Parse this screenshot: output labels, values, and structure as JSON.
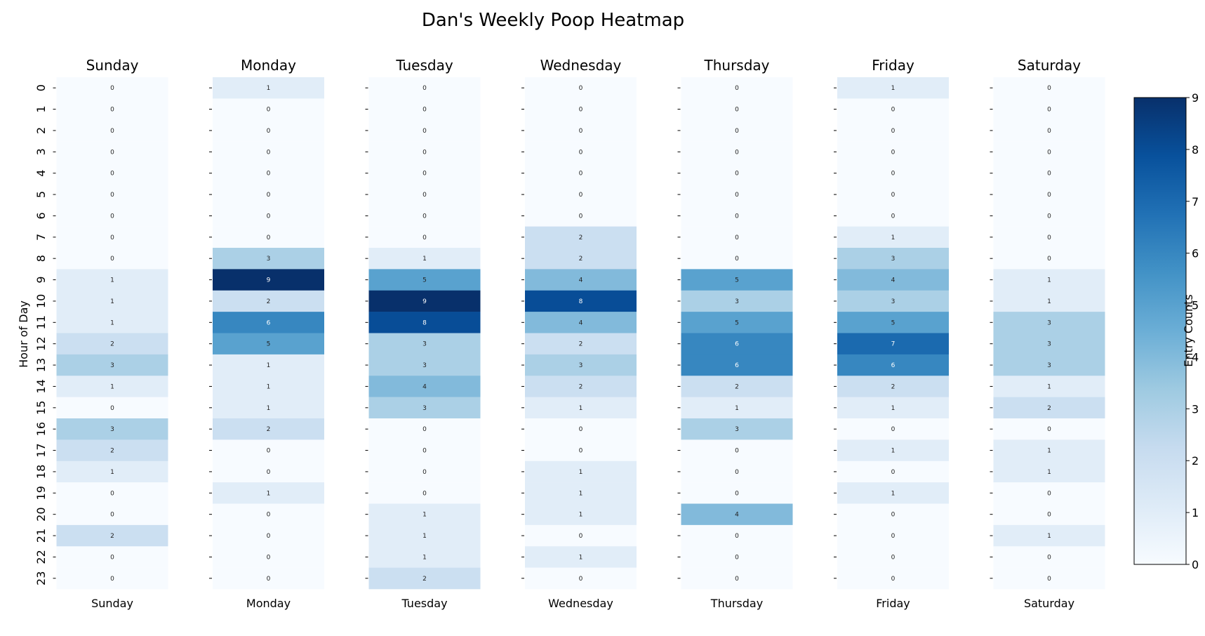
{
  "chart_data": {
    "type": "heatmap",
    "title": "Dan's Weekly Poop Heatmap",
    "ylabel": "Hour of Day",
    "colorbar_label": "Entry Counts",
    "colormap": "Blues",
    "vmin": 0,
    "vmax": 9,
    "colorbar_ticks": [
      0,
      1,
      2,
      3,
      4,
      5,
      6,
      7,
      8,
      9
    ],
    "hours": [
      0,
      1,
      2,
      3,
      4,
      5,
      6,
      7,
      8,
      9,
      10,
      11,
      12,
      13,
      14,
      15,
      16,
      17,
      18,
      19,
      20,
      21,
      22,
      23
    ],
    "series": [
      {
        "name": "Sunday",
        "values": [
          0,
          0,
          0,
          0,
          0,
          0,
          0,
          0,
          0,
          1,
          1,
          1,
          2,
          3,
          1,
          0,
          3,
          2,
          1,
          0,
          0,
          2,
          0,
          0
        ]
      },
      {
        "name": "Monday",
        "values": [
          1,
          0,
          0,
          0,
          0,
          0,
          0,
          0,
          3,
          9,
          2,
          6,
          5,
          1,
          1,
          1,
          2,
          0,
          0,
          1,
          0,
          0,
          0,
          0
        ]
      },
      {
        "name": "Tuesday",
        "values": [
          0,
          0,
          0,
          0,
          0,
          0,
          0,
          0,
          1,
          5,
          9,
          8,
          3,
          3,
          4,
          3,
          0,
          0,
          0,
          0,
          1,
          1,
          1,
          2
        ]
      },
      {
        "name": "Wednesday",
        "values": [
          0,
          0,
          0,
          0,
          0,
          0,
          0,
          2,
          2,
          4,
          8,
          4,
          2,
          3,
          2,
          1,
          0,
          0,
          1,
          1,
          1,
          0,
          1,
          0
        ]
      },
      {
        "name": "Thursday",
        "values": [
          0,
          0,
          0,
          0,
          0,
          0,
          0,
          0,
          0,
          5,
          3,
          5,
          6,
          6,
          2,
          1,
          3,
          0,
          0,
          0,
          4,
          0,
          0,
          0
        ]
      },
      {
        "name": "Friday",
        "values": [
          1,
          0,
          0,
          0,
          0,
          0,
          0,
          1,
          3,
          4,
          3,
          5,
          7,
          6,
          2,
          1,
          0,
          1,
          0,
          1,
          0,
          0,
          0,
          0
        ]
      },
      {
        "name": "Saturday",
        "values": [
          0,
          0,
          0,
          0,
          0,
          0,
          0,
          0,
          0,
          1,
          1,
          3,
          3,
          3,
          1,
          2,
          0,
          1,
          1,
          0,
          0,
          1,
          0,
          0
        ]
      }
    ]
  }
}
